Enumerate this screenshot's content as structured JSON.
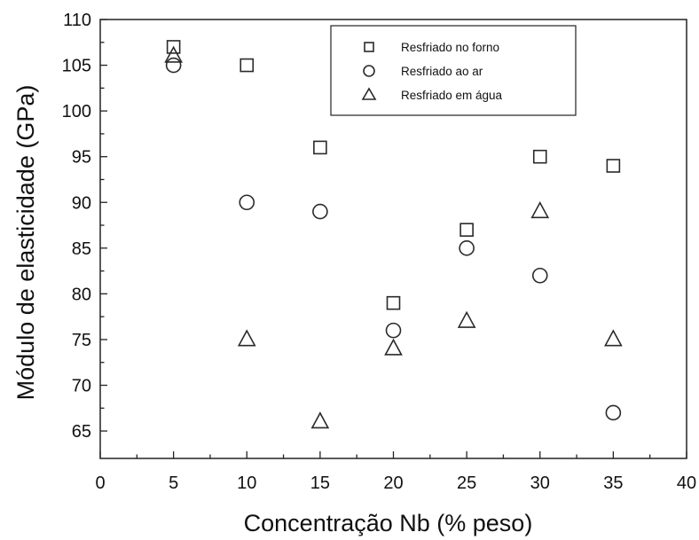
{
  "chart_data": {
    "type": "scatter",
    "xlabel": "Concentração Nb (% peso)",
    "ylabel": "Módulo de elasticidade (GPa)",
    "xlim": [
      0,
      40
    ],
    "ylim": [
      62,
      110
    ],
    "xticks": [
      0,
      5,
      10,
      15,
      20,
      25,
      30,
      35,
      40
    ],
    "yticks": [
      65,
      70,
      75,
      80,
      85,
      90,
      95,
      100,
      105,
      110
    ],
    "grid": false,
    "legend_position": "top-right",
    "series": [
      {
        "name": "Resfriado no forno",
        "marker": "square",
        "x": [
          5,
          10,
          15,
          20,
          25,
          30,
          35
        ],
        "y": [
          107,
          105,
          96,
          79,
          87,
          95,
          94
        ]
      },
      {
        "name": "Resfriado ao ar",
        "marker": "circle",
        "x": [
          5,
          10,
          15,
          20,
          25,
          30,
          35
        ],
        "y": [
          105,
          90,
          89,
          76,
          85,
          82,
          67
        ]
      },
      {
        "name": "Resfriado em água",
        "marker": "triangle",
        "x": [
          5,
          10,
          15,
          20,
          25,
          30,
          35
        ],
        "y": [
          106,
          75,
          66,
          74,
          77,
          89,
          75
        ]
      }
    ],
    "colors": {
      "marker_stroke": "#2a2a2a",
      "axis": "#222222",
      "background": "#ffffff"
    }
  }
}
